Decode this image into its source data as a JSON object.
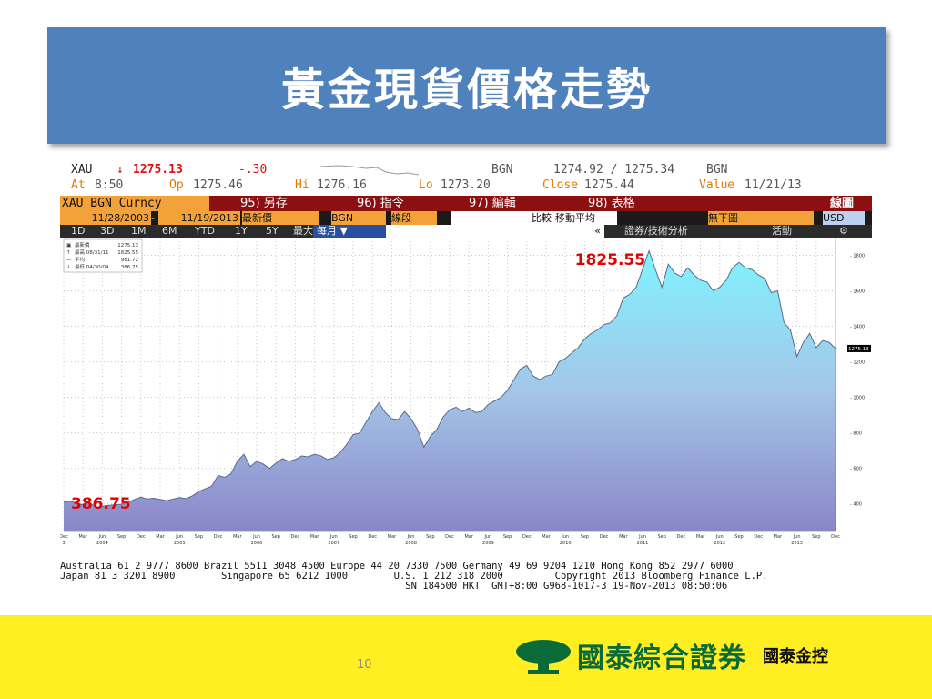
{
  "slide": {
    "title": "黃金現貨價格走勢",
    "page_number": "10"
  },
  "terminal": {
    "quote": {
      "ticker": "XAU",
      "arrow": "↓",
      "last": "1275.13",
      "change": "-.30",
      "src1": "BGN",
      "bidask": "1274.92 / 1275.34",
      "src2": "BGN",
      "at_label": "At",
      "at_value": "8:50",
      "op_label": "Op",
      "op_value": "1275.46",
      "hi_label": "Hi",
      "hi_value": "1276.16",
      "lo_label": "Lo",
      "lo_value": "1273.20",
      "close_label": "Close",
      "close_value": "1275.44",
      "value_label": "Value",
      "value_value": "11/21/13"
    },
    "menu": {
      "security": "XAU BGN Curncy",
      "save": "95) 另存",
      "command": "96) 指令",
      "edit": "97) 編輯",
      "table": "98) 表格",
      "chart": "線圖"
    },
    "controls": {
      "start_date": "11/28/2003",
      "dash": "-",
      "end_date": "11/19/2013",
      "price_type": "最新價",
      "source": "BGN",
      "line_type": "線段",
      "compare": "比較",
      "moving_avg": "移動平均",
      "no_chart": "無下圖",
      "currency": "USD"
    },
    "ranges": {
      "items": [
        "1D",
        "3D",
        "1M",
        "6M",
        "YTD",
        "1Y",
        "5Y",
        "最大"
      ],
      "period": "每月 ▼",
      "back": "«",
      "analysis": "證券/技術分析",
      "activity": "活動",
      "gear": "⚙"
    },
    "legend": [
      {
        "label": "最新價",
        "value": "1275.13"
      },
      {
        "label": "最高 08/31/11",
        "value": "1825.55"
      },
      {
        "label": "平均",
        "value": "981.72"
      },
      {
        "label": "最低 04/30/04",
        "value": "386.75"
      }
    ],
    "footer": [
      "Australia 61 2 9777 8600 Brazil 5511 3048 4500 Europe 44 20 7330 7500 Germany 49 69 9204 1210 Hong Kong 852 2977 6000",
      "Japan 81 3 3201 8900        Singapore 65 6212 1000        U.S. 1 212 318 2000         Copyright 2013 Bloomberg Finance L.P.",
      "                                                            SN 184500 HKT  GMT+8:00 G968-1017-3 19-Nov-2013 08:50:06"
    ]
  },
  "chart_data": {
    "type": "area",
    "title": "",
    "xlabel": "",
    "ylabel": "",
    "ylim": [
      250,
      1900
    ],
    "y_ticks": [
      400,
      600,
      800,
      1000,
      1200,
      1400,
      1600,
      1800
    ],
    "grid": true,
    "legend_position": "top-left",
    "x_ticks": [
      {
        "month": "Dec",
        "year": "3",
        "t": 0
      },
      {
        "month": "Mar",
        "t": 3
      },
      {
        "month": "Jun",
        "year": "2004",
        "t": 6
      },
      {
        "month": "Sep",
        "t": 9
      },
      {
        "month": "Dec",
        "t": 12
      },
      {
        "month": "Mar",
        "t": 15
      },
      {
        "month": "Jun",
        "year": "2005",
        "t": 18
      },
      {
        "month": "Sep",
        "t": 21
      },
      {
        "month": "Dec",
        "t": 24
      },
      {
        "month": "Mar",
        "t": 27
      },
      {
        "month": "Jun",
        "year": "2006",
        "t": 30
      },
      {
        "month": "Sep",
        "t": 33
      },
      {
        "month": "Dec",
        "t": 36
      },
      {
        "month": "Mar",
        "t": 39
      },
      {
        "month": "Jun",
        "year": "2007",
        "t": 42
      },
      {
        "month": "Sep",
        "t": 45
      },
      {
        "month": "Dec",
        "t": 48
      },
      {
        "month": "Mar",
        "t": 51
      },
      {
        "month": "Jun",
        "year": "2008",
        "t": 54
      },
      {
        "month": "Sep",
        "t": 57
      },
      {
        "month": "Dec",
        "t": 60
      },
      {
        "month": "Mar",
        "t": 63
      },
      {
        "month": "Jun",
        "year": "2009",
        "t": 66
      },
      {
        "month": "Sep",
        "t": 69
      },
      {
        "month": "Dec",
        "t": 72
      },
      {
        "month": "Mar",
        "t": 75
      },
      {
        "month": "Jun",
        "year": "2010",
        "t": 78
      },
      {
        "month": "Sep",
        "t": 81
      },
      {
        "month": "Dec",
        "t": 84
      },
      {
        "month": "Mar",
        "t": 87
      },
      {
        "month": "Jun",
        "year": "2011",
        "t": 90
      },
      {
        "month": "Sep",
        "t": 93
      },
      {
        "month": "Dec",
        "t": 96
      },
      {
        "month": "Mar",
        "t": 99
      },
      {
        "month": "Jun",
        "year": "2012",
        "t": 102
      },
      {
        "month": "Sep",
        "t": 105
      },
      {
        "month": "Dec",
        "t": 108
      },
      {
        "month": "Mar",
        "t": 111
      },
      {
        "month": "Jun",
        "year": "2013",
        "t": 114
      },
      {
        "month": "Sep",
        "t": 117
      },
      {
        "month": "Dec",
        "t": 120
      }
    ],
    "series": [
      {
        "values": [
          410,
          415,
          405,
          395,
          410,
          380,
          386.75,
          392,
          395,
          398,
          410,
          425,
          438,
          428,
          432,
          425,
          418,
          428,
          436,
          430,
          445,
          470,
          485,
          500,
          560,
          550,
          570,
          640,
          680,
          610,
          640,
          625,
          600,
          630,
          655,
          640,
          650,
          670,
          665,
          680,
          670,
          650,
          660,
          690,
          735,
          790,
          800,
          860,
          920,
          970,
          915,
          880,
          875,
          920,
          880,
          820,
          720,
          780,
          820,
          890,
          930,
          945,
          920,
          940,
          915,
          920,
          960,
          980,
          1000,
          1040,
          1100,
          1160,
          1180,
          1120,
          1100,
          1120,
          1130,
          1200,
          1220,
          1250,
          1280,
          1330,
          1360,
          1380,
          1410,
          1420,
          1460,
          1560,
          1580,
          1620,
          1720,
          1825.55,
          1720,
          1620,
          1750,
          1700,
          1680,
          1730,
          1690,
          1660,
          1650,
          1600,
          1620,
          1660,
          1730,
          1760,
          1730,
          1720,
          1690,
          1670,
          1590,
          1600,
          1420,
          1380,
          1230,
          1310,
          1360,
          1280,
          1320,
          1310,
          1275.13
        ]
      }
    ],
    "annotations": [
      {
        "text": "1825.55",
        "point_index": 91
      },
      {
        "text": "386.75",
        "point_index": 6
      }
    ],
    "last_price_label": "1275.13"
  },
  "footer_logo": {
    "company": "國泰綜合證券",
    "group": "國泰金控"
  },
  "colors": {
    "title_bg": "#4f81bd",
    "menu_bg": "#8c0f12",
    "band_bg": "#ffee22",
    "area_top": "#7ff3ff",
    "area_bottom": "#8a86c8",
    "annotation": "#e00000",
    "logo_green": "#0a6b39"
  }
}
